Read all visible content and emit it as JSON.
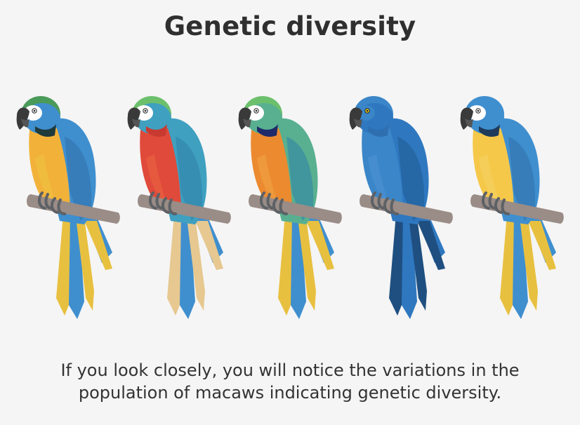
{
  "title": "Genetic diversity",
  "caption": {
    "line1": "If you look closely, you will notice the variations in the",
    "line2": "population of macaws indicating genetic diversity."
  },
  "colors": {
    "background": "#f5f5f5",
    "perch": "#9a8c86",
    "feet": "#5d6166",
    "beak": "#3a3a3a"
  },
  "macaws": [
    {
      "name": "blue-and-yellow-macaw",
      "crown": "#4a9a5a",
      "face": "#ffffff",
      "throat": "#1f3a3a",
      "chest": "#f2b23a",
      "chest2": "#f0c040",
      "wing": "#3f8fcf",
      "wing_dark": "#2f6fa8",
      "tail": "#e8c040",
      "tail2": "#3f8fcf",
      "eye": "#ffffff"
    },
    {
      "name": "green-winged-macaw",
      "crown": "#6cc06c",
      "face": "#ffffff",
      "throat": "#c83a30",
      "chest": "#e04a3a",
      "chest2": "#e86040",
      "wing": "#3fa0c0",
      "wing_dark": "#2f7fa8",
      "tail": "#e6c890",
      "tail2": "#3f8fcf",
      "eye": "#ffffff"
    },
    {
      "name": "hybrid-macaw",
      "crown": "#6cc06c",
      "face": "#ffffff",
      "throat": "#1e2a6a",
      "chest": "#ec8a30",
      "chest2": "#f0a040",
      "wing": "#58b090",
      "wing_dark": "#2f7fa8",
      "tail": "#e8c040",
      "tail2": "#3f8fcf",
      "eye": "#ffffff"
    },
    {
      "name": "hyacinth-macaw",
      "crown": "#3a86c8",
      "face": "#3a86c8",
      "throat": "#2f6fb0",
      "chest": "#3a86c8",
      "chest2": "#4a90d0",
      "wing": "#2f78c0",
      "wing_dark": "#1f5a90",
      "tail": "#1f4f80",
      "tail2": "#2f78c0",
      "eye": "#f5d020"
    },
    {
      "name": "blue-and-yellow-macaw-2",
      "crown": "#3f8fcf",
      "face": "#ffffff",
      "throat": "#1f3a5a",
      "chest": "#f5c84a",
      "chest2": "#f5d060",
      "wing": "#3f8fcf",
      "wing_dark": "#2f6fa8",
      "tail": "#e8c040",
      "tail2": "#3f8fcf",
      "eye": "#ffffff"
    }
  ]
}
